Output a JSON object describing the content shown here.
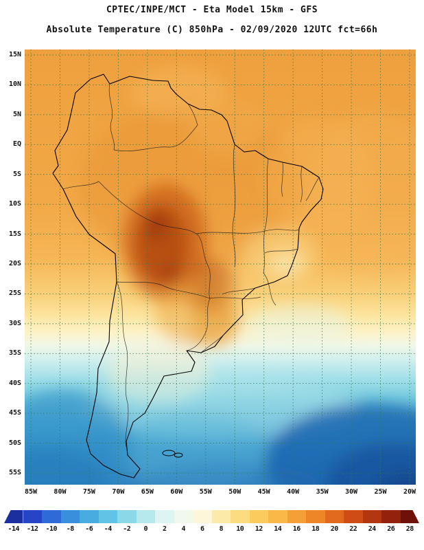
{
  "header": {
    "line1": "CPTEC/INPE/MCT -  Eta Model 15km - GFS",
    "line2": "Absolute Temperature (C) 850hPa - 02/09/2020 12UTC fct=66h"
  },
  "axes": {
    "lat_labels": [
      "15N",
      "10N",
      "5N",
      "EQ",
      "5S",
      "10S",
      "15S",
      "20S",
      "25S",
      "30S",
      "35S",
      "40S",
      "45S",
      "50S",
      "55S"
    ],
    "lon_labels": [
      "85W",
      "80W",
      "75W",
      "70W",
      "65W",
      "60W",
      "55W",
      "50W",
      "45W",
      "40W",
      "35W",
      "30W",
      "25W",
      "20W"
    ]
  },
  "colorbar": {
    "tick_labels": [
      "-14",
      "-12",
      "-10",
      "-8",
      "-6",
      "-4",
      "-2",
      "0",
      "2",
      "4",
      "6",
      "8",
      "10",
      "12",
      "14",
      "16",
      "18",
      "20",
      "22",
      "24",
      "26",
      "28"
    ],
    "segment_colors": [
      "#1b2f9e",
      "#2545c6",
      "#2e6ad8",
      "#3a8fdc",
      "#49ace0",
      "#62c4e4",
      "#8ad8e8",
      "#b6e9ee",
      "#dcf5f2",
      "#f0f9ec",
      "#fdf6d8",
      "#fceaa8",
      "#fbdc80",
      "#fbcb5e",
      "#f9b847",
      "#f5a036",
      "#ee8627",
      "#e26a1c",
      "#cf4d15",
      "#b43610",
      "#92220c",
      "#6f1108"
    ]
  },
  "chart_data": {
    "type": "heatmap",
    "title": "Absolute Temperature (C) 850hPa forecast",
    "model": "Eta Model 15km - GFS",
    "source_text": "CPTEC/INPE/MCT",
    "valid_text": "02/09/2020 12UTC fct=66h",
    "units": "C",
    "colorbar_ticks": [
      -14,
      -12,
      -10,
      -8,
      -6,
      -4,
      -2,
      0,
      2,
      4,
      6,
      8,
      10,
      12,
      14,
      16,
      18,
      20,
      22,
      24,
      26,
      28
    ],
    "lat_range": [
      "15N",
      "55S"
    ],
    "lon_range": [
      "85W",
      "20W"
    ],
    "grid": "dashed 5-degree graticule"
  }
}
